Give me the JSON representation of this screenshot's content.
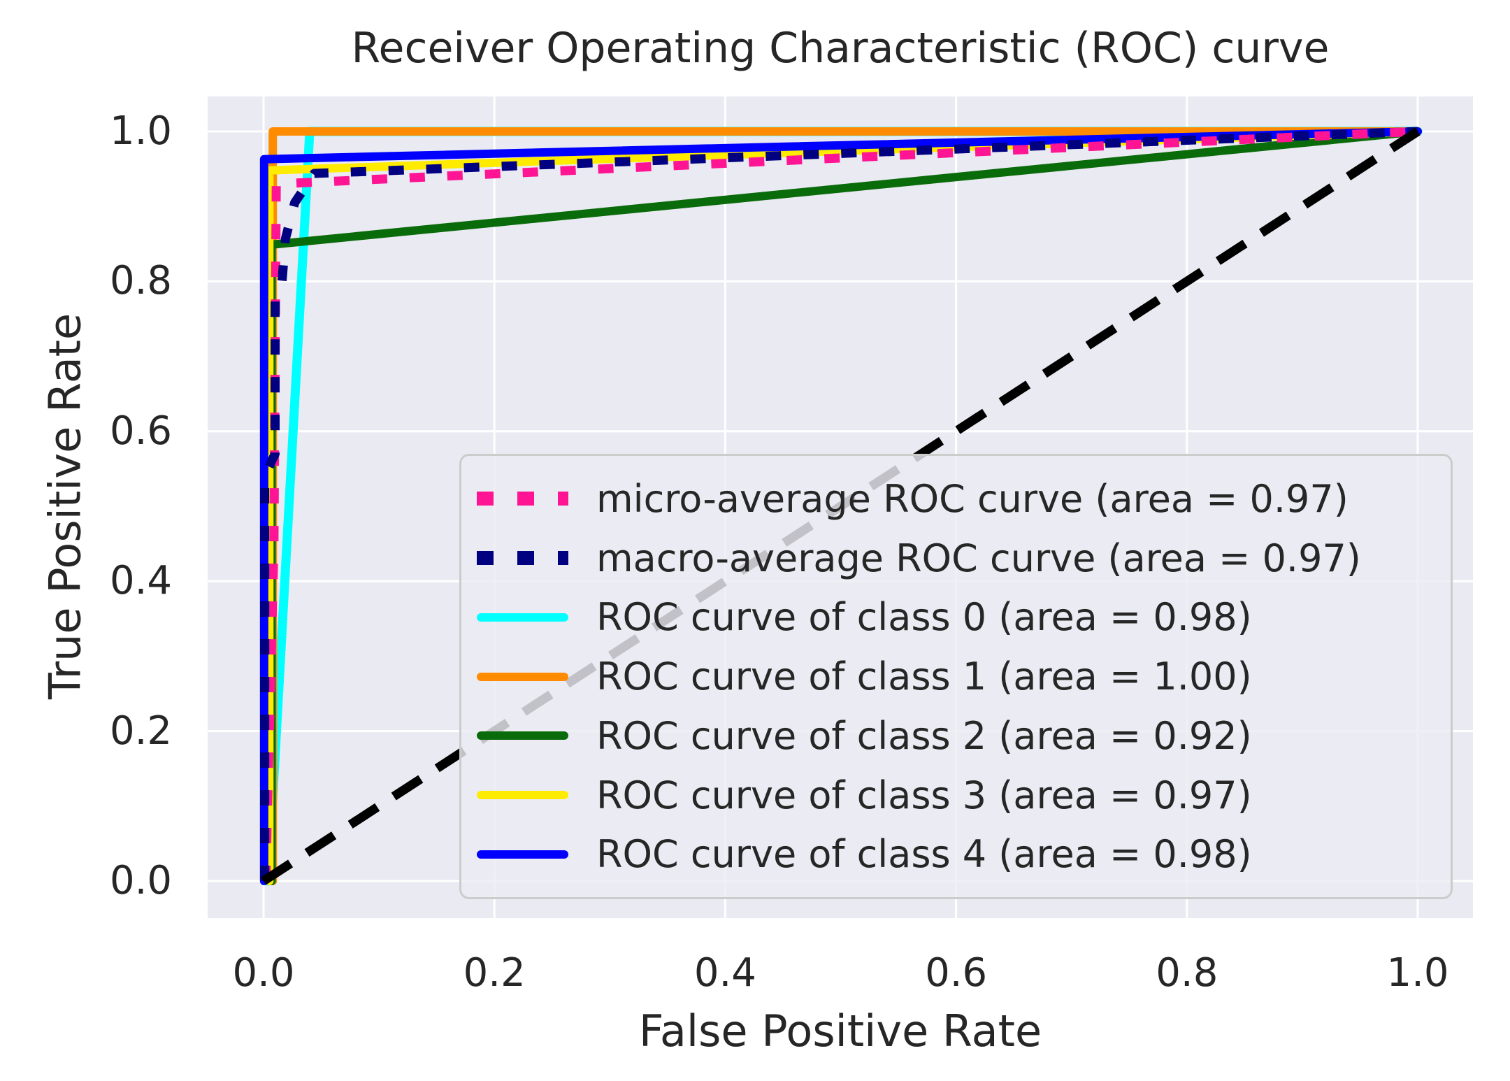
{
  "figure": {
    "background_color": "#ffffff",
    "axes_background_color": "#eaeaf2",
    "grid_color": "#ffffff",
    "text_color": "#262626",
    "legend_border_color": "#cccccc"
  },
  "chart_data": {
    "type": "line",
    "title": "Receiver Operating Characteristic (ROC) curve",
    "xlabel": "False Positive Rate",
    "ylabel": "True Positive Rate",
    "xlim": [
      0.0,
      1.0
    ],
    "ylim": [
      0.0,
      1.0
    ],
    "x_ticks": [
      "0.0",
      "0.2",
      "0.4",
      "0.6",
      "0.8",
      "1.0"
    ],
    "y_ticks": [
      "0.0",
      "0.2",
      "0.4",
      "0.6",
      "0.8",
      "1.0"
    ],
    "grid": true,
    "legend_position": "lower right inside axes",
    "series": [
      {
        "label": "micro-average ROC curve (area = 0.97)",
        "auc": 0.97,
        "color": "#ff1493",
        "style": "dashed",
        "points": [
          [
            0.002,
            0
          ],
          [
            0.003,
            0.07
          ],
          [
            0.009,
            0.45
          ],
          [
            0.011,
            0.93
          ],
          [
            1,
            1
          ]
        ]
      },
      {
        "label": "macro-average ROC curve (area = 0.97)",
        "auc": 0.97,
        "color": "#000080",
        "style": "dashed",
        "points": [
          [
            0.001,
            0
          ],
          [
            0.001,
            0.54
          ],
          [
            0.01,
            0.57
          ],
          [
            0.01,
            0.78
          ],
          [
            0.016,
            0.8
          ],
          [
            0.019,
            0.857
          ],
          [
            0.027,
            0.905
          ],
          [
            0.044,
            0.944
          ],
          [
            1,
            1
          ]
        ]
      },
      {
        "label": "ROC curve of class 0 (area = 0.98)",
        "auc": 0.98,
        "color": "#00ffff",
        "style": "solid",
        "points": [
          [
            0.004,
            0
          ],
          [
            0.04,
            1
          ],
          [
            1,
            1
          ]
        ]
      },
      {
        "label": "ROC curve of class 1 (area = 1.00)",
        "auc": 1.0,
        "color": "#ff8c00",
        "style": "solid",
        "points": [
          [
            0.008,
            0
          ],
          [
            0.008,
            1
          ],
          [
            1,
            1
          ]
        ]
      },
      {
        "label": "ROC curve of class 2 (area = 0.92)",
        "auc": 0.92,
        "color": "#0a6b0a",
        "style": "solid",
        "points": [
          [
            0.007,
            0
          ],
          [
            0.007,
            0.849
          ],
          [
            1,
            1
          ]
        ]
      },
      {
        "label": "ROC curve of class 3 (area = 0.97)",
        "auc": 0.97,
        "color": "#ffeb00",
        "style": "solid",
        "points": [
          [
            0.005,
            0
          ],
          [
            0.005,
            0.948
          ],
          [
            1,
            1
          ]
        ]
      },
      {
        "label": "ROC curve of class 4 (area = 0.98)",
        "auc": 0.98,
        "color": "#0000ff",
        "style": "solid",
        "points": [
          [
            0.0005,
            0
          ],
          [
            0.0005,
            0.963
          ],
          [
            1,
            1
          ]
        ]
      }
    ],
    "reference_line": {
      "name": "chance diagonal",
      "color": "#000000",
      "style": "dashed",
      "points": [
        [
          0,
          0
        ],
        [
          1,
          1
        ]
      ]
    }
  }
}
